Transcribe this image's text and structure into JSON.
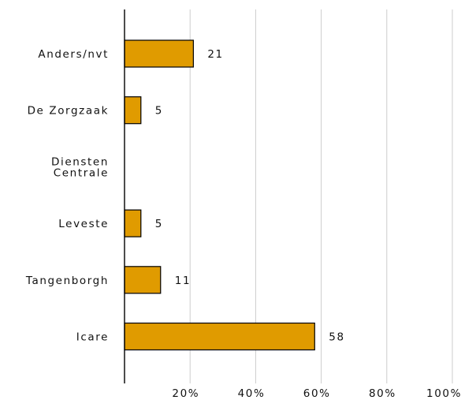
{
  "chart_data": {
    "type": "bar",
    "orientation": "horizontal",
    "categories": [
      [
        "Anders/nvt"
      ],
      [
        "De Zorgzaak"
      ],
      [
        "Diensten",
        "Centrale"
      ],
      [
        "Leveste"
      ],
      [
        "Tangenborgh"
      ],
      [
        "Icare"
      ]
    ],
    "values": [
      21,
      5,
      0,
      5,
      11,
      58
    ],
    "data_labels": [
      "21",
      "5",
      "",
      "5",
      "11",
      "58"
    ],
    "xlim": [
      0,
      100
    ],
    "x_ticks": [
      20,
      40,
      60,
      80,
      100
    ],
    "x_tick_labels": [
      "20%",
      "40%",
      "60%",
      "80%",
      "100%"
    ],
    "grid": "vertical",
    "bar_color": "#e09b00",
    "bar_edge_color": "#000000",
    "grid_color": "#cccccc"
  }
}
